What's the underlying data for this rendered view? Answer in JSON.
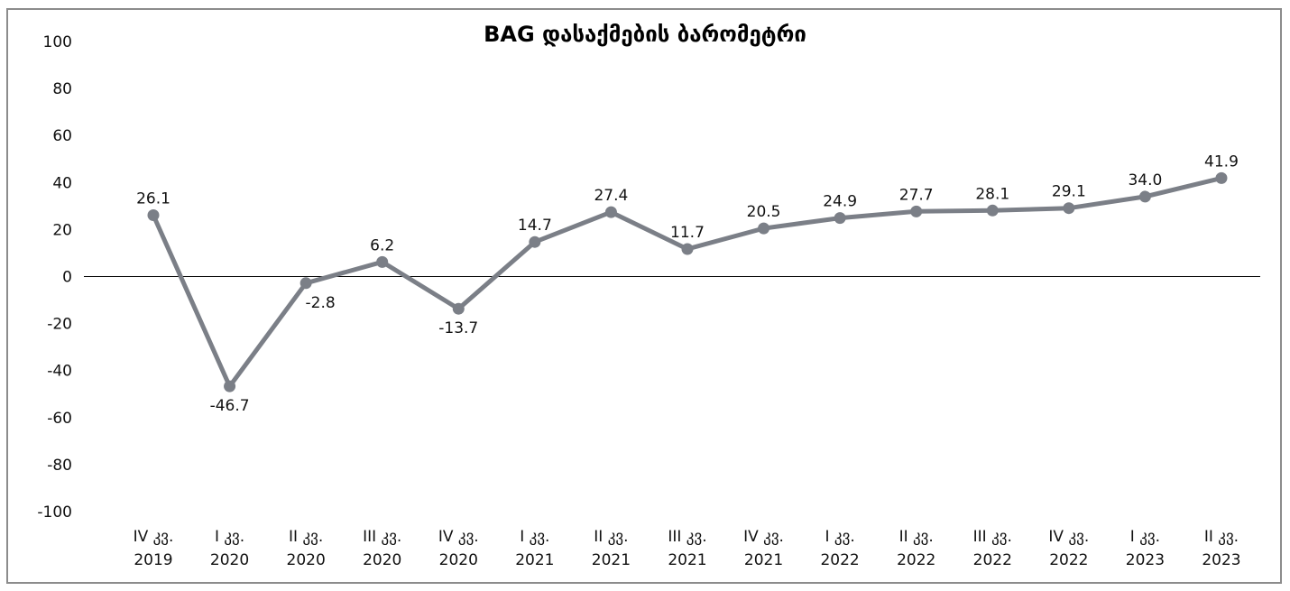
{
  "chart_data": {
    "type": "line",
    "title": "BAG დასაქმების ბარომეტრი",
    "xlabel": "",
    "ylabel": "",
    "ylim": [
      -100,
      100
    ],
    "yticks": [
      "100",
      "80",
      "60",
      "40",
      "20",
      "0",
      "-20",
      "-40",
      "-60",
      "-80",
      "-100"
    ],
    "categories": [
      [
        "IV კვ.",
        "2019"
      ],
      [
        "I კვ.",
        "2020"
      ],
      [
        "II კვ.",
        "2020"
      ],
      [
        "III კვ.",
        "2020"
      ],
      [
        "IV კვ.",
        "2020"
      ],
      [
        "I კვ.",
        "2021"
      ],
      [
        "II კვ.",
        "2021"
      ],
      [
        "III კვ.",
        "2021"
      ],
      [
        "IV კვ.",
        "2021"
      ],
      [
        "I კვ.",
        "2022"
      ],
      [
        "II კვ.",
        "2022"
      ],
      [
        "III კვ.",
        "2022"
      ],
      [
        "IV კვ.",
        "2022"
      ],
      [
        "I კვ.",
        "2023"
      ],
      [
        "II კვ.",
        "2023"
      ]
    ],
    "values": [
      26.1,
      -46.7,
      -2.8,
      6.2,
      -13.7,
      14.7,
      27.4,
      11.7,
      20.5,
      24.9,
      27.7,
      28.1,
      29.1,
      34.0,
      41.9
    ],
    "labels": [
      "26.1",
      "-46.7",
      "-2.8",
      "6.2",
      "-13.7",
      "14.7",
      "27.4",
      "11.7",
      "20.5",
      "24.9",
      "27.7",
      "28.1",
      "29.1",
      "34.0",
      "41.9"
    ],
    "label_position": [
      "above",
      "below",
      "below",
      "above",
      "below",
      "above",
      "above",
      "above",
      "above",
      "above",
      "above",
      "above",
      "above",
      "above",
      "above"
    ],
    "grid": false,
    "legend": "none",
    "line_color": "#7b7f87",
    "zero_line_color": "#000000"
  }
}
